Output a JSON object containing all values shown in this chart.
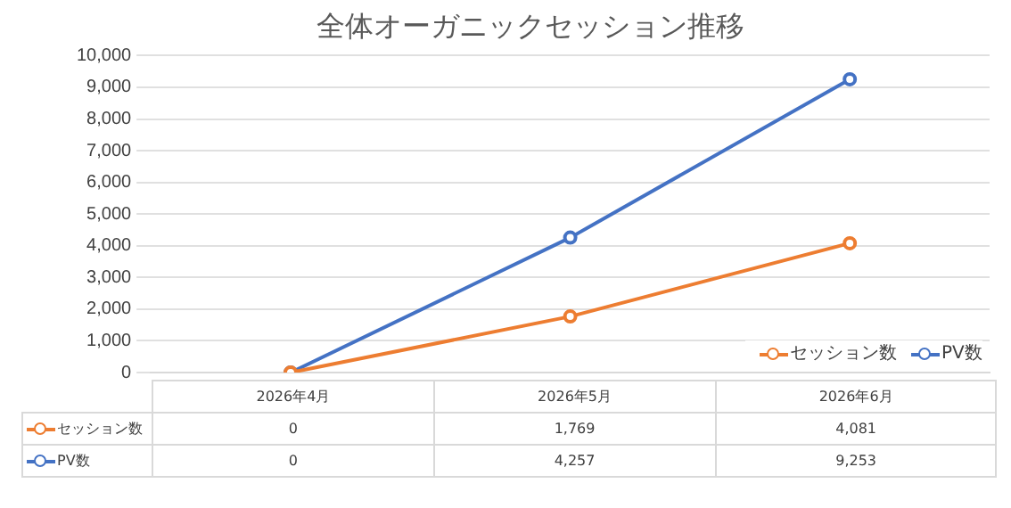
{
  "chart_data": {
    "type": "line",
    "title": "全体オーガニックセッション推移",
    "categories": [
      "2026年4月",
      "2026年5月",
      "2026年6月"
    ],
    "series": [
      {
        "name": "セッション数",
        "color": "#ed7d31",
        "values": [
          0,
          1769,
          4081
        ],
        "value_labels": [
          "0",
          "1,769",
          "4,081"
        ]
      },
      {
        "name": "PV数",
        "color": "#4472c4",
        "values": [
          0,
          4257,
          9253
        ],
        "value_labels": [
          "0",
          "4,257",
          "9,253"
        ]
      }
    ],
    "ylim": [
      0,
      10000
    ],
    "yticks": [
      {
        "value": 0,
        "label": "0"
      },
      {
        "value": 1000,
        "label": "1,000"
      },
      {
        "value": 2000,
        "label": "2,000"
      },
      {
        "value": 3000,
        "label": "3,000"
      },
      {
        "value": 4000,
        "label": "4,000"
      },
      {
        "value": 5000,
        "label": "5,000"
      },
      {
        "value": 6000,
        "label": "6,000"
      },
      {
        "value": 7000,
        "label": "7,000"
      },
      {
        "value": 8000,
        "label": "8,000"
      },
      {
        "value": 9000,
        "label": "9,000"
      },
      {
        "value": 10000,
        "label": "10,000"
      }
    ],
    "grid": "y",
    "legend": "bottom right",
    "marker": "circle",
    "line_style": "solid"
  }
}
